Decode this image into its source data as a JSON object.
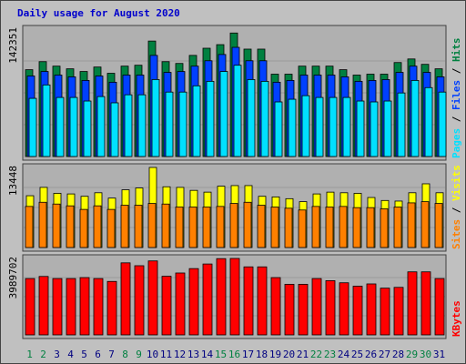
{
  "title": "Daily usage for August 2020",
  "colors": {
    "hits": "#008040",
    "files": "#0040ff",
    "pages": "#00e0ff",
    "visits": "#ffff00",
    "sites": "#ff8000",
    "kbytes": "#ff0000",
    "weekend": "#008040",
    "weekday": "#000080"
  },
  "chart_data": [
    {
      "type": "bar",
      "name_label_parts": [
        "Pages",
        "Files",
        "Hits"
      ],
      "ymax_label": "142351",
      "ylim": [
        0,
        142351
      ],
      "categories": [
        "1",
        "2",
        "3",
        "4",
        "5",
        "6",
        "7",
        "8",
        "9",
        "10",
        "11",
        "12",
        "13",
        "14",
        "15",
        "16",
        "17",
        "18",
        "19",
        "20",
        "21",
        "22",
        "23",
        "24",
        "25",
        "26",
        "27",
        "28",
        "29",
        "30",
        "31"
      ],
      "weekend_days": [
        1,
        2,
        8,
        9,
        15,
        16,
        22,
        23,
        29,
        30
      ],
      "series": [
        {
          "name": "Hits",
          "values": [
            97000,
            106000,
            101000,
            98000,
            95000,
            100000,
            93000,
            101000,
            102000,
            129000,
            106000,
            104000,
            113000,
            121000,
            125000,
            138000,
            120000,
            120000,
            92000,
            92000,
            101000,
            101000,
            101000,
            97000,
            91000,
            92000,
            92000,
            105000,
            109000,
            103000,
            98000
          ]
        },
        {
          "name": "Files",
          "values": [
            90000,
            95000,
            91000,
            89000,
            85000,
            90000,
            83000,
            91000,
            91000,
            113000,
            94000,
            95000,
            101000,
            107000,
            114000,
            122000,
            107000,
            107000,
            83000,
            85000,
            91000,
            91000,
            91000,
            89000,
            84000,
            85000,
            86000,
            94000,
            101000,
            94000,
            89000
          ]
        },
        {
          "name": "Pages",
          "values": [
            65000,
            80000,
            66000,
            66000,
            62000,
            67000,
            60000,
            69000,
            69000,
            86000,
            72000,
            72000,
            79000,
            84000,
            95000,
            102000,
            86000,
            84000,
            61000,
            64000,
            68000,
            66000,
            66000,
            66000,
            62000,
            61000,
            62000,
            71000,
            85000,
            77000,
            72000
          ]
        }
      ]
    },
    {
      "type": "bar",
      "name_label_parts": [
        "Sites",
        "Visits"
      ],
      "ymax_label": "13448",
      "ylim": [
        0,
        13448
      ],
      "categories": [
        "1",
        "2",
        "3",
        "4",
        "5",
        "6",
        "7",
        "8",
        "9",
        "10",
        "11",
        "12",
        "13",
        "14",
        "15",
        "16",
        "17",
        "18",
        "19",
        "20",
        "21",
        "22",
        "23",
        "24",
        "25",
        "26",
        "27",
        "28",
        "29",
        "30",
        "31"
      ],
      "series": [
        {
          "name": "Visits",
          "values": [
            8700,
            10100,
            9100,
            9000,
            8600,
            9200,
            8300,
            9700,
            10000,
            13448,
            10200,
            10100,
            9600,
            9300,
            10300,
            10400,
            10400,
            8600,
            8500,
            8200,
            7700,
            9000,
            9300,
            9200,
            9100,
            8400,
            7900,
            7800,
            9200,
            10700,
            9200
          ]
        },
        {
          "name": "Sites",
          "values": [
            6900,
            7600,
            7300,
            7000,
            6400,
            7000,
            6400,
            7100,
            7100,
            7400,
            7300,
            6800,
            6800,
            6800,
            6900,
            7400,
            7600,
            7100,
            6800,
            6600,
            6300,
            6900,
            6800,
            6900,
            6700,
            6700,
            6500,
            6800,
            7500,
            7700,
            7400
          ]
        }
      ]
    },
    {
      "type": "bar",
      "name_label_parts": [
        "KBytes"
      ],
      "ymax_label": "3989702",
      "ylim": [
        0,
        3989702
      ],
      "categories": [
        "1",
        "2",
        "3",
        "4",
        "5",
        "6",
        "7",
        "8",
        "9",
        "10",
        "11",
        "12",
        "13",
        "14",
        "15",
        "16",
        "17",
        "18",
        "19",
        "20",
        "21",
        "22",
        "23",
        "24",
        "25",
        "26",
        "27",
        "28",
        "29",
        "30",
        "31"
      ],
      "series": [
        {
          "name": "KBytes",
          "values": [
            2940000,
            3050000,
            2940000,
            2940000,
            2990000,
            2940000,
            2790000,
            3760000,
            3610000,
            3860000,
            3060000,
            3230000,
            3460000,
            3700000,
            3980000,
            3990000,
            3550000,
            3550000,
            2990000,
            2640000,
            2640000,
            2940000,
            2830000,
            2720000,
            2540000,
            2660000,
            2440000,
            2480000,
            3290000,
            3290000,
            2940000
          ]
        }
      ]
    }
  ]
}
